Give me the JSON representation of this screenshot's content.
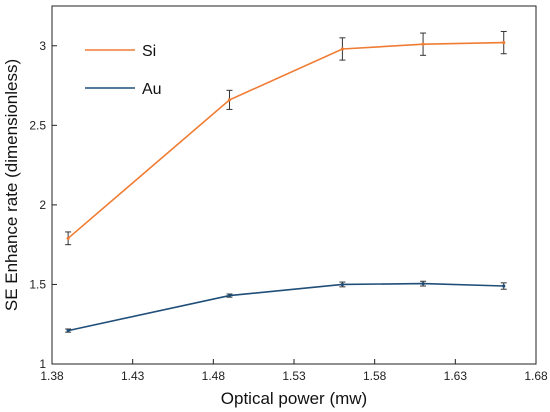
{
  "chart_data": {
    "type": "line",
    "title": "",
    "xlabel": "Optical power (mw)",
    "ylabel": "SE Enhance rate  (dimensionless)",
    "xlim": [
      1.38,
      1.68
    ],
    "ylim": [
      1,
      3.25
    ],
    "xticks": [
      "1.38",
      "1.43",
      "1.48",
      "1.53",
      "1.58",
      "1.63",
      "1.68"
    ],
    "yticks": [
      "1",
      "1.5",
      "2",
      "2.5",
      "3"
    ],
    "grid": false,
    "legend_position": "top-left",
    "series": [
      {
        "name": "Si",
        "color": "#f07c33",
        "points": [
          {
            "x": 1.39,
            "y": 1.79,
            "err": 0.04
          },
          {
            "x": 1.49,
            "y": 2.66,
            "err": 0.06
          },
          {
            "x": 1.56,
            "y": 2.98,
            "err": 0.07
          },
          {
            "x": 1.61,
            "y": 3.01,
            "err": 0.07
          },
          {
            "x": 1.66,
            "y": 3.02,
            "err": 0.07
          }
        ]
      },
      {
        "name": "Au",
        "color": "#1f4e79",
        "points": [
          {
            "x": 1.39,
            "y": 1.21,
            "err": 0.01
          },
          {
            "x": 1.49,
            "y": 1.43,
            "err": 0.01
          },
          {
            "x": 1.56,
            "y": 1.5,
            "err": 0.015
          },
          {
            "x": 1.61,
            "y": 1.505,
            "err": 0.015
          },
          {
            "x": 1.66,
            "y": 1.49,
            "err": 0.02
          }
        ]
      }
    ]
  }
}
